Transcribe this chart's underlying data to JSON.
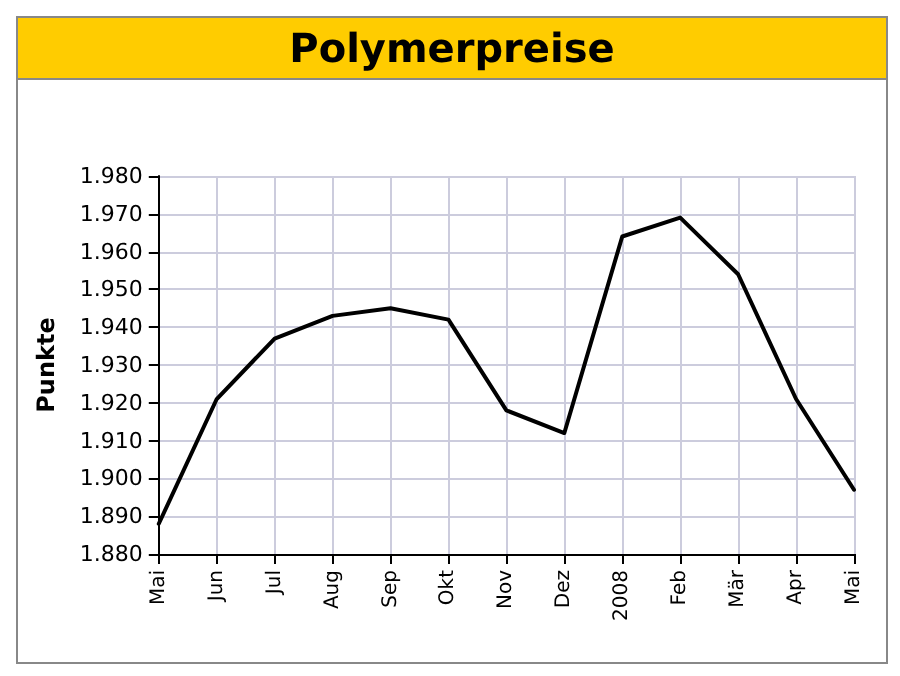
{
  "chart_data": {
    "type": "line",
    "title": "Polymerpreise",
    "ylabel": "Punkte",
    "categories": [
      "Mai",
      "Jun",
      "Jul",
      "Aug",
      "Sep",
      "Okt",
      "Nov",
      "Dez",
      "2008",
      "Feb",
      "Mär",
      "Apr",
      "Mai"
    ],
    "series": [
      {
        "color": "#000000",
        "values": [
          1888,
          1921,
          1937,
          1943,
          1945,
          1942,
          1918,
          1912,
          1964,
          1969,
          1954,
          1921,
          1897
        ]
      }
    ],
    "ylim": [
      1880,
      1980
    ],
    "yticks": [
      {
        "value": 1880,
        "label": "1.880"
      },
      {
        "value": 1890,
        "label": "1.890"
      },
      {
        "value": 1900,
        "label": "1.900"
      },
      {
        "value": 1910,
        "label": "1.910"
      },
      {
        "value": 1920,
        "label": "1.920"
      },
      {
        "value": 1930,
        "label": "1.930"
      },
      {
        "value": 1940,
        "label": "1.940"
      },
      {
        "value": 1950,
        "label": "1.950"
      },
      {
        "value": 1960,
        "label": "1.960"
      },
      {
        "value": 1970,
        "label": "1.970"
      },
      {
        "value": 1980,
        "label": "1.980"
      }
    ],
    "grid": true,
    "marker": "none",
    "line_style": "solid"
  }
}
